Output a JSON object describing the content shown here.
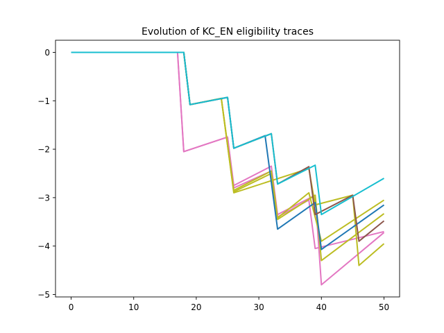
{
  "chart_data": {
    "type": "line",
    "title": "Evolution of KC_EN eligibility traces",
    "xlabel": "",
    "ylabel": "",
    "xlim": [
      -2.5,
      52.5
    ],
    "ylim": [
      -5.05,
      0.25
    ],
    "xticks": [
      0,
      10,
      20,
      30,
      40,
      50
    ],
    "yticks": [
      0,
      -1,
      -2,
      -3,
      -4,
      -5
    ],
    "xtick_labels": [
      "0",
      "10",
      "20",
      "30",
      "40",
      "50"
    ],
    "ytick_labels": [
      "0",
      "−1",
      "−2",
      "−3",
      "−4",
      "−5"
    ],
    "grid": false,
    "series": [
      {
        "color": "#e377c2",
        "x": [
          0,
          17,
          18,
          25,
          26,
          32,
          33,
          38,
          39,
          50
        ],
        "y": [
          0,
          0,
          -2.05,
          -1.75,
          -2.8,
          -2.45,
          -3.4,
          -3.05,
          -4.05,
          -3.7
        ]
      },
      {
        "color": "#e377c2",
        "x": [
          0,
          17,
          18,
          25,
          26,
          32,
          33,
          39,
          40,
          50
        ],
        "y": [
          0,
          0,
          -2.05,
          -1.75,
          -2.75,
          -2.35,
          -3.35,
          -2.95,
          -4.8,
          -3.72
        ]
      },
      {
        "color": "#bcbd22",
        "x": [
          0,
          18,
          19,
          24,
          26,
          38,
          39,
          45,
          46,
          50
        ],
        "y": [
          0,
          0,
          -1.08,
          -0.95,
          -2.9,
          -2.4,
          -3.15,
          -2.95,
          -4.4,
          -3.95
        ]
      },
      {
        "color": "#bcbd22",
        "x": [
          0,
          18,
          19,
          24,
          26,
          32,
          33,
          39,
          40,
          50
        ],
        "y": [
          0,
          0,
          -1.08,
          -0.95,
          -2.88,
          -2.5,
          -3.45,
          -2.95,
          -4.3,
          -3.33
        ]
      },
      {
        "color": "#bcbd22",
        "x": [
          0,
          18,
          19,
          24,
          26,
          32,
          33,
          38,
          40,
          50
        ],
        "y": [
          0,
          0,
          -1.08,
          -0.95,
          -2.85,
          -2.45,
          -3.42,
          -2.9,
          -3.9,
          -3.05
        ]
      },
      {
        "color": "#1f77b4",
        "x": [
          0,
          18,
          19,
          25,
          26,
          31,
          33,
          39,
          40,
          50
        ],
        "y": [
          0,
          0,
          -1.08,
          -0.93,
          -1.98,
          -1.72,
          -3.65,
          -3.1,
          -4.07,
          -3.15
        ]
      },
      {
        "color": "#8c564b",
        "x": [
          0,
          18,
          19,
          25,
          26,
          32,
          33,
          38,
          39,
          45,
          46,
          50
        ],
        "y": [
          0,
          0,
          -1.08,
          -0.93,
          -1.98,
          -1.68,
          -2.72,
          -2.36,
          -3.35,
          -2.95,
          -3.9,
          -3.48
        ]
      },
      {
        "color": "#17becf",
        "x": [
          0,
          18,
          19,
          25,
          26,
          32,
          33,
          39,
          40,
          50
        ],
        "y": [
          0,
          0,
          -1.08,
          -0.93,
          -1.98,
          -1.68,
          -2.72,
          -2.33,
          -3.35,
          -2.6
        ]
      }
    ]
  }
}
